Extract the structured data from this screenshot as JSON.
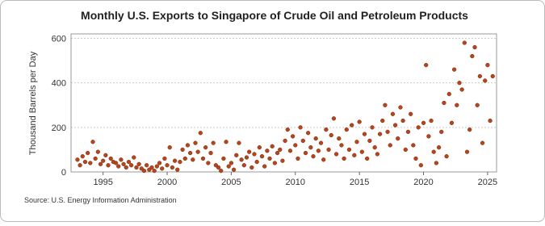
{
  "chart_data": {
    "type": "scatter",
    "title": "Monthly U.S. Exports to Singapore of Crude Oil and Petroleum Products",
    "y_label": "Thousand Barrels per Day",
    "source": "Source: U.S. Energy Information Administration",
    "color": "#b5451b",
    "xlim": [
      1992.5,
      2025.7
    ],
    "xticks": [
      1995,
      2000,
      2005,
      2010,
      2015,
      2020,
      2025
    ],
    "ylim": [
      0,
      620
    ],
    "yticks": [
      0,
      200,
      400,
      600
    ],
    "grid": true,
    "x": [
      1993,
      1993.2,
      1993.4,
      1993.6,
      1993.8,
      1994,
      1994.2,
      1994.4,
      1994.6,
      1994.8,
      1995,
      1995.2,
      1995.4,
      1995.6,
      1995.8,
      1996,
      1996.2,
      1996.4,
      1996.6,
      1996.8,
      1997,
      1997.2,
      1997.4,
      1997.6,
      1997.8,
      1998,
      1998.2,
      1998.4,
      1998.6,
      1998.8,
      1999,
      1999.2,
      1999.4,
      1999.6,
      1999.8,
      2000,
      2000.2,
      2000.4,
      2000.6,
      2000.8,
      2001,
      2001.2,
      2001.4,
      2001.6,
      2001.8,
      2002,
      2002.2,
      2002.4,
      2002.6,
      2002.8,
      2003,
      2003.2,
      2003.4,
      2003.6,
      2003.8,
      2004,
      2004.2,
      2004.4,
      2004.6,
      2004.8,
      2005,
      2005.2,
      2005.4,
      2005.6,
      2005.8,
      2006,
      2006.2,
      2006.4,
      2006.6,
      2006.8,
      2007,
      2007.2,
      2007.4,
      2007.6,
      2007.8,
      2008,
      2008.2,
      2008.4,
      2008.6,
      2008.8,
      2009,
      2009.2,
      2009.4,
      2009.6,
      2009.8,
      2010,
      2010.2,
      2010.4,
      2010.6,
      2010.8,
      2011,
      2011.2,
      2011.4,
      2011.6,
      2011.8,
      2012,
      2012.2,
      2012.4,
      2012.6,
      2012.8,
      2013,
      2013.2,
      2013.4,
      2013.6,
      2013.8,
      2014,
      2014.2,
      2014.4,
      2014.6,
      2014.8,
      2015,
      2015.2,
      2015.4,
      2015.6,
      2015.8,
      2016,
      2016.2,
      2016.4,
      2016.6,
      2016.8,
      2017,
      2017.2,
      2017.4,
      2017.6,
      2017.8,
      2018,
      2018.2,
      2018.4,
      2018.6,
      2018.8,
      2019,
      2019.2,
      2019.4,
      2019.6,
      2019.8,
      2020,
      2020.2,
      2020.4,
      2020.6,
      2020.8,
      2021,
      2021.2,
      2021.4,
      2021.6,
      2021.8,
      2022,
      2022.2,
      2022.4,
      2022.6,
      2022.8,
      2023,
      2023.2,
      2023.4,
      2023.6,
      2023.8,
      2024,
      2024.2,
      2024.4,
      2024.6,
      2024.8,
      2025,
      2025.2,
      2025.4
    ],
    "values": [
      55,
      30,
      70,
      45,
      85,
      40,
      135,
      60,
      90,
      35,
      50,
      75,
      30,
      60,
      45,
      40,
      25,
      55,
      35,
      20,
      45,
      30,
      65,
      20,
      35,
      15,
      5,
      30,
      10,
      20,
      5,
      25,
      40,
      15,
      60,
      30,
      110,
      20,
      50,
      10,
      45,
      100,
      60,
      120,
      85,
      55,
      130,
      90,
      175,
      60,
      110,
      40,
      85,
      130,
      30,
      20,
      5,
      60,
      135,
      25,
      40,
      10,
      75,
      130,
      55,
      30,
      65,
      90,
      20,
      80,
      45,
      110,
      70,
      25,
      95,
      60,
      115,
      40,
      85,
      100,
      50,
      140,
      190,
      95,
      160,
      120,
      60,
      200,
      140,
      85,
      175,
      110,
      70,
      150,
      95,
      130,
      55,
      190,
      100,
      165,
      240,
      80,
      150,
      120,
      60,
      190,
      100,
      210,
      75,
      135,
      225,
      90,
      170,
      60,
      140,
      200,
      110,
      80,
      170,
      230,
      300,
      180,
      120,
      260,
      210,
      150,
      290,
      230,
      100,
      180,
      260,
      120,
      60,
      200,
      30,
      220,
      480,
      160,
      230,
      90,
      40,
      110,
      180,
      310,
      70,
      350,
      220,
      460,
      300,
      400,
      370,
      580,
      90,
      190,
      520,
      560,
      300,
      430,
      130,
      410,
      480,
      230,
      430
    ]
  }
}
